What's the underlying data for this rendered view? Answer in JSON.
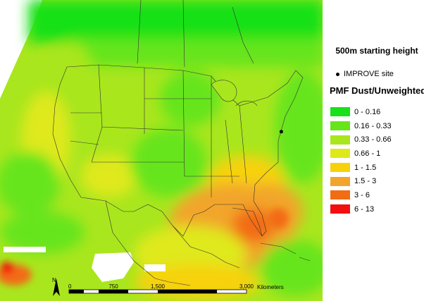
{
  "legend": {
    "height_title": "500m starting height",
    "site_label": "IMPROVE site",
    "title": "PMF Dust/Unweighted",
    "bins": [
      {
        "label": "0 - 0.16",
        "color": "#19e119"
      },
      {
        "label": "0.16 - 0.33",
        "color": "#66e51a"
      },
      {
        "label": "0.33 - 0.66",
        "color": "#a9e61e"
      },
      {
        "label": "0.66 - 1",
        "color": "#dfe91a"
      },
      {
        "label": "1 - 1.5",
        "color": "#f7d20b"
      },
      {
        "label": "1.5 - 3",
        "color": "#f2a52c"
      },
      {
        "label": "3 - 6",
        "color": "#f26c14"
      },
      {
        "label": "6 - 13",
        "color": "#f20f0f"
      }
    ]
  },
  "scalebar": {
    "north_label": "N",
    "ticks": [
      "0",
      "750",
      "1,500",
      "3,000"
    ],
    "unit": "Kilometers"
  },
  "sites": [
    {
      "name": "IMPROVE site",
      "lon": -75.9,
      "lat": 36.6
    }
  ]
}
